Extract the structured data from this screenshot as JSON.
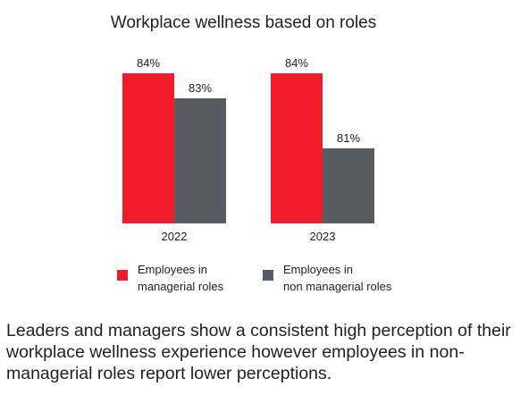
{
  "chart_data": {
    "type": "bar",
    "title": "Workplace wellness based on roles",
    "categories": [
      "2022",
      "2023"
    ],
    "series": [
      {
        "name": "Employees in managerial roles",
        "values": [
          84,
          84
        ],
        "labels": [
          "84%",
          "84%"
        ],
        "color": "#f01c2b"
      },
      {
        "name": "Employees in non managerial roles",
        "values": [
          83,
          81
        ],
        "labels": [
          "83%",
          "81%"
        ],
        "color": "#575b62"
      }
    ],
    "xlabel": "",
    "ylabel": "",
    "grid": false,
    "legend_position": "bottom"
  },
  "legend": {
    "item1_line1": "Employees in",
    "item1_line2": "managerial roles",
    "item2_line1": "Employees in",
    "item2_line2": "non managerial roles"
  },
  "caption": "Leaders and managers show a consistent high perception of their workplace wellness experience however employees in non-managerial roles report lower perceptions."
}
